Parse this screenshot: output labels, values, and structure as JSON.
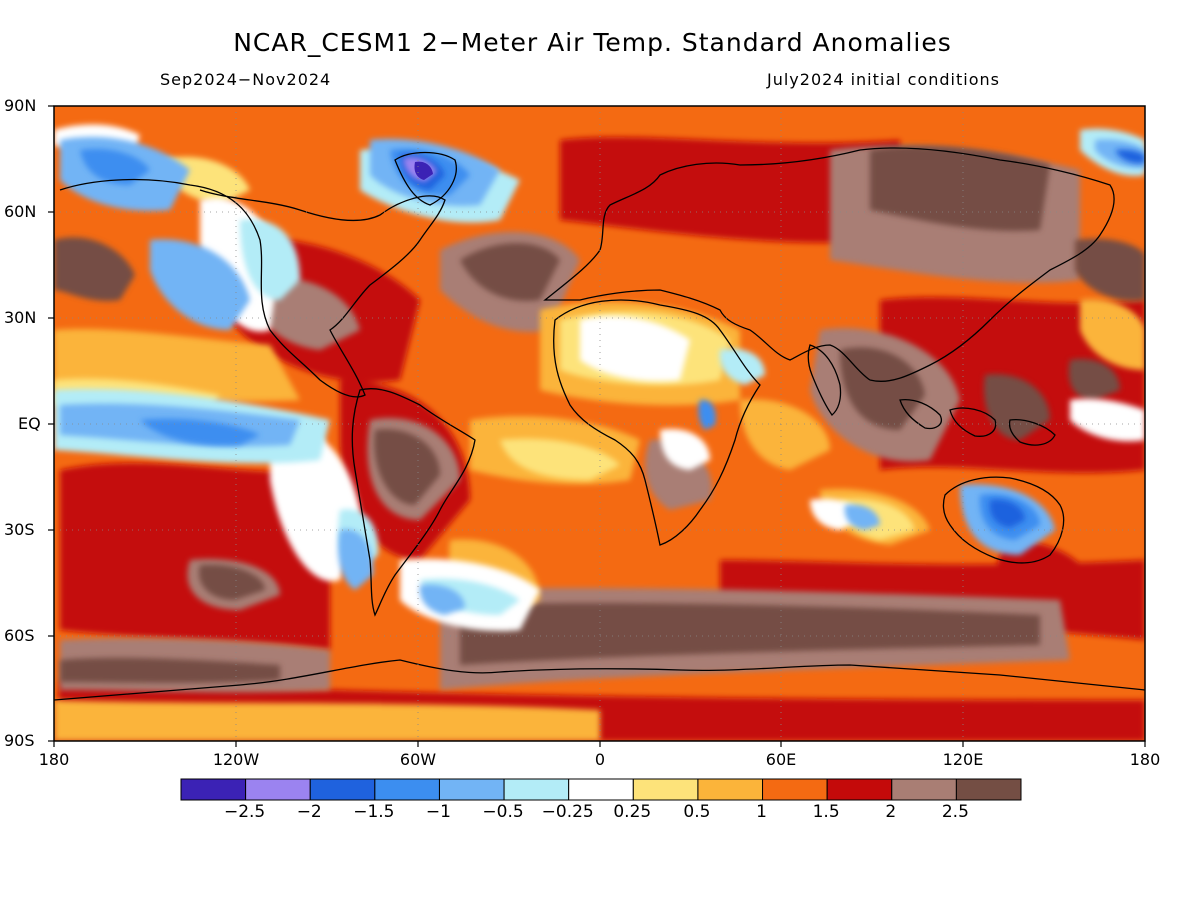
{
  "title": "NCAR_CESM1 2−Meter Air Temp. Standard Anomalies",
  "season": "Sep2024−Nov2024",
  "init": "July2024 initial conditions",
  "lat_labels": [
    "90N",
    "60N",
    "30N",
    "EQ",
    "30S",
    "60S",
    "90S"
  ],
  "lon_labels": [
    "180",
    "120W",
    "60W",
    "0",
    "60E",
    "120E",
    "180"
  ],
  "colorbar": {
    "labels": [
      "−2.5",
      "−2",
      "−1.5",
      "−1",
      "−0.5",
      "−0.25",
      "0.25",
      "0.5",
      "1",
      "1.5",
      "2",
      "2.5"
    ],
    "colors": [
      "#3b22b5",
      "#9b83f0",
      "#1f62de",
      "#3c8ef0",
      "#72b4f5",
      "#b3ecf7",
      "#ffffff",
      "#fde37a",
      "#fbb43a",
      "#f46a12",
      "#c40a0a",
      "#a97e74",
      "#744e44"
    ]
  }
}
